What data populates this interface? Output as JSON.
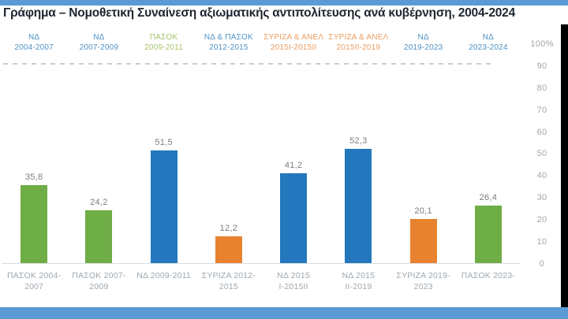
{
  "title": "Γράφημα – Νομοθετική Συναίνεση αξιωματικής αντιπολίτευσης ανά κυβέρνηση, 2004-2024",
  "colors": {
    "accent_strip": "#5B9BD5",
    "bar_blue": "#2277BD",
    "bar_green": "#6FAD46",
    "bar_orange": "#E8822F",
    "gov_label_blue": "#4E92C4",
    "gov_label_green": "#A6C36B",
    "gov_label_orange": "#EA9E61",
    "value_label_gray": "#7d7d7d",
    "axis_label_gray": "#9ea8b0",
    "tick_gray": "#a6a6a6"
  },
  "chart_data": {
    "type": "bar",
    "title": "Γράφημα – Νομοθετική Συναίνεση αξιωματικής αντιπολίτευσης ανά κυβέρνηση, 2004-2024",
    "ylim": [
      0,
      100
    ],
    "grid": false,
    "legend": "none",
    "y_axis_position": "right",
    "y_ticks": [
      "100%",
      "90",
      "80",
      "70",
      "60",
      "50",
      "40",
      "30",
      "20",
      "10",
      "0"
    ],
    "governments": [
      {
        "party": "ΝΔ",
        "years": "2004-2007",
        "color": "blue"
      },
      {
        "party": "ΝΔ",
        "years": "2007-2009",
        "color": "blue"
      },
      {
        "party": "ΠΑΣΟΚ",
        "years": "2009-2011",
        "color": "green"
      },
      {
        "party": "ΝΔ & ΠΑΣΟΚ",
        "years": "2012-2015",
        "color": "blue"
      },
      {
        "party": "ΣΥΡΙΖΑ & ΑΝΕΛ",
        "years": "2015Ι-2015ΙΙ",
        "color": "orange"
      },
      {
        "party": "ΣΥΡΙΖΑ & ΑΝΕΛ",
        "years": "2015ΙΙ-2019",
        "color": "orange"
      },
      {
        "party": "ΝΔ",
        "years": "2019-2023",
        "color": "blue"
      },
      {
        "party": "ΝΔ",
        "years": "2023-2024",
        "color": "blue"
      }
    ],
    "categories": [
      "ΠΑΣΟΚ 2004-2007",
      "ΠΑΣΟΚ 2007-2009",
      "ΝΔ 2009-2011",
      "ΣΥΡΙΖΑ 2012-2015",
      "ΝΔ 2015 Ι-2015ΙΙ",
      "ΝΔ 2015 ΙΙ-2019",
      "ΣΥΡΙΖΑ 2019-2023",
      "ΠΑΣΟΚ 2023-"
    ],
    "values": [
      35.8,
      24.2,
      51.5,
      12.2,
      41.2,
      52.3,
      20.1,
      26.4
    ],
    "value_labels": [
      "35,8",
      "24,2",
      "51,5",
      "12,2",
      "41,2",
      "52,3",
      "20,1",
      "26,4"
    ],
    "bar_colors": [
      "green",
      "green",
      "blue",
      "orange",
      "blue",
      "blue",
      "orange",
      "green"
    ]
  }
}
